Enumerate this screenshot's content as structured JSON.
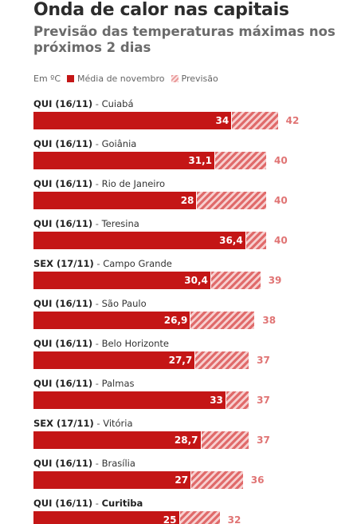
{
  "header": {
    "title": "Onda de calor nas capitais",
    "subtitle": "Previsão das temperaturas máximas nos próximos 2 dias"
  },
  "legend": {
    "unit": "Em ºC",
    "average_label": "Média de novembro",
    "forecast_label": "Previsão"
  },
  "colors": {
    "average": "#c41616",
    "forecast": "#e06a6a"
  },
  "chart_data": {
    "type": "bar",
    "orientation": "horizontal",
    "unit": "ºC",
    "rows": [
      {
        "date": "QUI (16/11)",
        "city": "Cuiabá",
        "average": 34,
        "average_label": "34",
        "forecast": 42,
        "forecast_label": "42"
      },
      {
        "date": "QUI (16/11)",
        "city": "Goiânia",
        "average": 31.1,
        "average_label": "31,1",
        "forecast": 40,
        "forecast_label": "40"
      },
      {
        "date": "QUI (16/11)",
        "city": "Rio de Janeiro",
        "average": 28,
        "average_label": "28",
        "forecast": 40,
        "forecast_label": "40"
      },
      {
        "date": "QUI (16/11)",
        "city": "Teresina",
        "average": 36.4,
        "average_label": "36,4",
        "forecast": 40,
        "forecast_label": "40"
      },
      {
        "date": "SEX (17/11)",
        "city": "Campo Grande",
        "average": 30.4,
        "average_label": "30,4",
        "forecast": 39,
        "forecast_label": "39"
      },
      {
        "date": "QUI (16/11)",
        "city": "São Paulo",
        "average": 26.9,
        "average_label": "26,9",
        "forecast": 38,
        "forecast_label": "38"
      },
      {
        "date": "QUI (16/11)",
        "city": "Belo Horizonte",
        "average": 27.7,
        "average_label": "27,7",
        "forecast": 37,
        "forecast_label": "37"
      },
      {
        "date": "QUI (16/11)",
        "city": "Palmas",
        "average": 33,
        "average_label": "33",
        "forecast": 37,
        "forecast_label": "37"
      },
      {
        "date": "SEX (17/11)",
        "city": "Vitória",
        "average": 28.7,
        "average_label": "28,7",
        "forecast": 37,
        "forecast_label": "37"
      },
      {
        "date": "QUI (16/11)",
        "city": "Brasília",
        "average": 27,
        "average_label": "27",
        "forecast": 36,
        "forecast_label": "36"
      },
      {
        "date": "QUI (16/11)",
        "city": "Curitiba",
        "average": 25,
        "average_label": "25",
        "forecast": 32,
        "forecast_label": "32",
        "city_bold": true
      }
    ]
  }
}
